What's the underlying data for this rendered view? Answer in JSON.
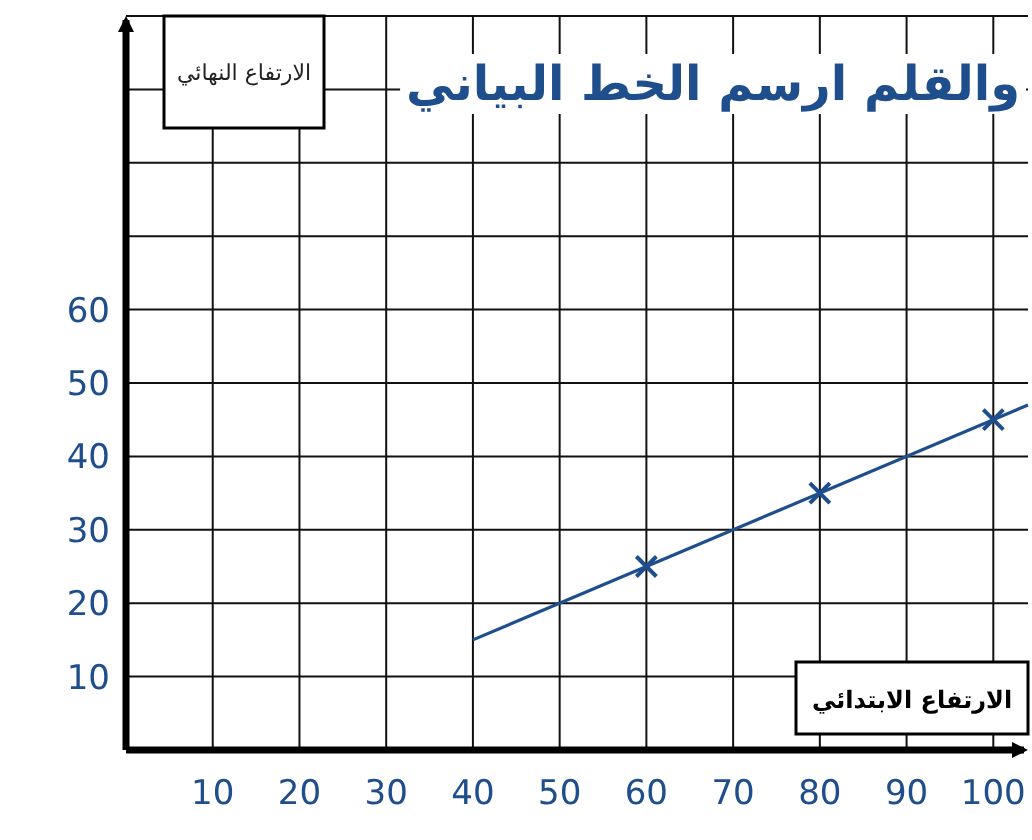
{
  "chart_data": {
    "type": "scatter",
    "title": "والقلم ارسم الخط البياني",
    "xlabel": "الارتفاع الابتدائي",
    "ylabel": "الارتفاع النهائي",
    "xlim": [
      0,
      104
    ],
    "ylim": [
      0,
      100
    ],
    "xticks": [
      10,
      20,
      30,
      40,
      50,
      60,
      70,
      80,
      90,
      100
    ],
    "yticks": [
      10,
      20,
      30,
      40,
      50,
      60,
      {
        "value": 70,
        "label": null
      },
      {
        "value": 80,
        "label": null
      },
      {
        "value": 90,
        "label": null
      },
      {
        "value": 100,
        "label": null
      }
    ],
    "grid": true,
    "marker": "cross",
    "series": [
      {
        "color": "#1f4e8c",
        "x": [
          60,
          80,
          100
        ],
        "values": [
          25,
          35,
          45
        ]
      },
      {
        "type": "line",
        "color": "#1f4e8c",
        "x": [
          40,
          104
        ],
        "values": [
          15,
          47
        ],
        "marker": "none",
        "line_style": "solid"
      }
    ]
  }
}
